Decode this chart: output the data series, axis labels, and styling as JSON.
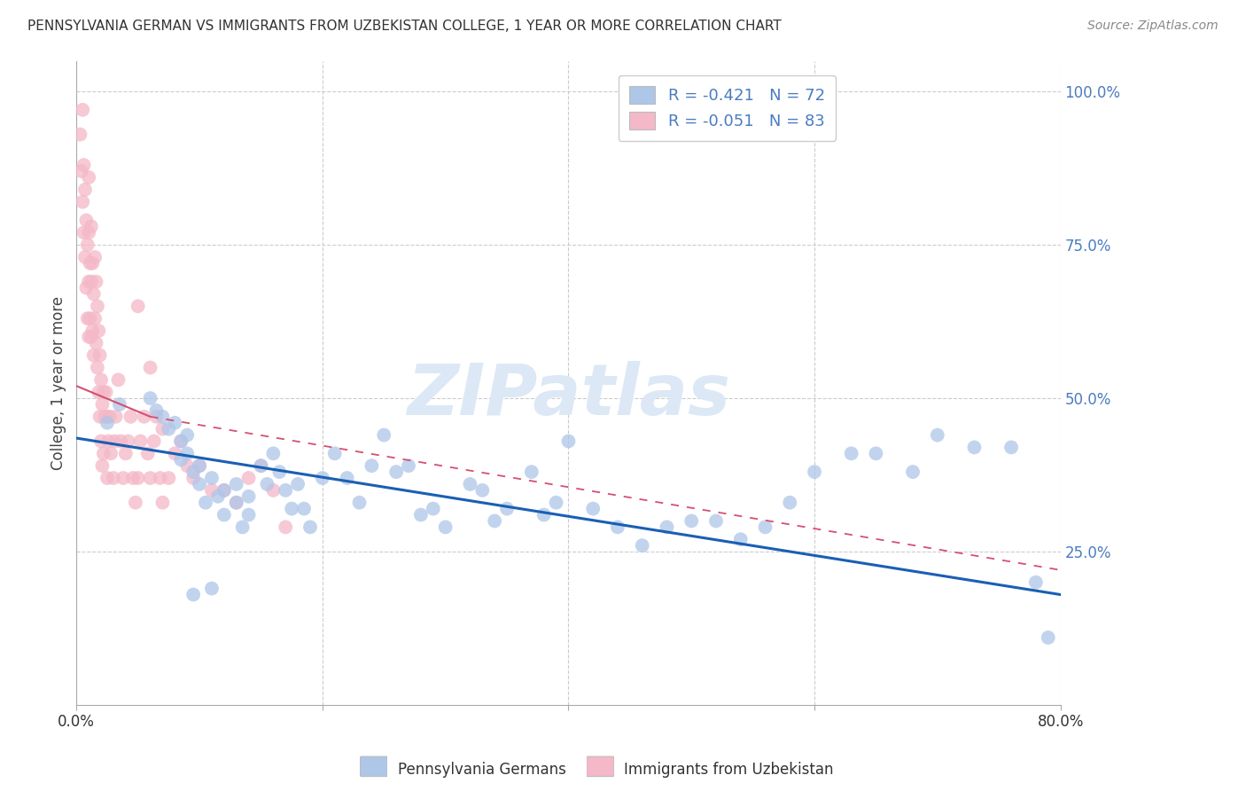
{
  "title": "PENNSYLVANIA GERMAN VS IMMIGRANTS FROM UZBEKISTAN COLLEGE, 1 YEAR OR MORE CORRELATION CHART",
  "source": "Source: ZipAtlas.com",
  "ylabel": "College, 1 year or more",
  "xlim": [
    0.0,
    0.8
  ],
  "ylim": [
    0.0,
    1.05
  ],
  "watermark": "ZIPatlas",
  "blue_color": "#aec6e8",
  "pink_color": "#f4b8c8",
  "blue_line_color": "#1a5fb4",
  "pink_line_solid_color": "#d45070",
  "pink_line_dash_color": "#e8a0b0",
  "grid_color": "#cccccc",
  "right_axis_color": "#4a7cc0",
  "watermark_color": "#dce8f5",
  "background_color": "#ffffff",
  "legend_R1_color": "#2060c0",
  "legend_R2_color": "#2060c0",
  "legend_N1_color": "#2060c0",
  "legend_N2_color": "#2060c0",
  "blue_scatter_x": [
    0.025,
    0.035,
    0.06,
    0.065,
    0.07,
    0.075,
    0.08,
    0.085,
    0.085,
    0.09,
    0.09,
    0.095,
    0.1,
    0.1,
    0.105,
    0.11,
    0.115,
    0.12,
    0.12,
    0.13,
    0.13,
    0.135,
    0.14,
    0.14,
    0.15,
    0.155,
    0.16,
    0.165,
    0.17,
    0.175,
    0.18,
    0.185,
    0.19,
    0.2,
    0.21,
    0.22,
    0.23,
    0.24,
    0.25,
    0.26,
    0.27,
    0.28,
    0.29,
    0.3,
    0.32,
    0.33,
    0.34,
    0.35,
    0.37,
    0.38,
    0.39,
    0.4,
    0.42,
    0.44,
    0.46,
    0.48,
    0.5,
    0.52,
    0.54,
    0.56,
    0.58,
    0.6,
    0.63,
    0.65,
    0.68,
    0.7,
    0.73,
    0.76,
    0.78,
    0.79,
    0.095,
    0.11
  ],
  "blue_scatter_y": [
    0.46,
    0.49,
    0.5,
    0.48,
    0.47,
    0.45,
    0.46,
    0.43,
    0.4,
    0.44,
    0.41,
    0.38,
    0.36,
    0.39,
    0.33,
    0.37,
    0.34,
    0.35,
    0.31,
    0.36,
    0.33,
    0.29,
    0.34,
    0.31,
    0.39,
    0.36,
    0.41,
    0.38,
    0.35,
    0.32,
    0.36,
    0.32,
    0.29,
    0.37,
    0.41,
    0.37,
    0.33,
    0.39,
    0.44,
    0.38,
    0.39,
    0.31,
    0.32,
    0.29,
    0.36,
    0.35,
    0.3,
    0.32,
    0.38,
    0.31,
    0.33,
    0.43,
    0.32,
    0.29,
    0.26,
    0.29,
    0.3,
    0.3,
    0.27,
    0.29,
    0.33,
    0.38,
    0.41,
    0.41,
    0.38,
    0.44,
    0.42,
    0.42,
    0.2,
    0.11,
    0.18,
    0.19
  ],
  "pink_scatter_x": [
    0.003,
    0.004,
    0.005,
    0.005,
    0.006,
    0.006,
    0.007,
    0.007,
    0.008,
    0.008,
    0.009,
    0.009,
    0.01,
    0.01,
    0.01,
    0.01,
    0.011,
    0.011,
    0.012,
    0.012,
    0.012,
    0.013,
    0.013,
    0.014,
    0.014,
    0.015,
    0.015,
    0.016,
    0.016,
    0.017,
    0.017,
    0.018,
    0.018,
    0.019,
    0.019,
    0.02,
    0.02,
    0.021,
    0.021,
    0.022,
    0.022,
    0.023,
    0.024,
    0.025,
    0.025,
    0.026,
    0.027,
    0.028,
    0.03,
    0.031,
    0.032,
    0.034,
    0.036,
    0.038,
    0.04,
    0.042,
    0.044,
    0.046,
    0.048,
    0.05,
    0.052,
    0.055,
    0.058,
    0.06,
    0.063,
    0.065,
    0.068,
    0.07,
    0.075,
    0.08,
    0.085,
    0.09,
    0.095,
    0.1,
    0.11,
    0.12,
    0.13,
    0.14,
    0.15,
    0.16,
    0.17,
    0.05,
    0.06,
    0.07
  ],
  "pink_scatter_y": [
    0.93,
    0.87,
    0.97,
    0.82,
    0.88,
    0.77,
    0.84,
    0.73,
    0.79,
    0.68,
    0.75,
    0.63,
    0.86,
    0.77,
    0.69,
    0.6,
    0.72,
    0.63,
    0.78,
    0.69,
    0.6,
    0.72,
    0.61,
    0.67,
    0.57,
    0.73,
    0.63,
    0.69,
    0.59,
    0.65,
    0.55,
    0.61,
    0.51,
    0.57,
    0.47,
    0.53,
    0.43,
    0.49,
    0.39,
    0.51,
    0.41,
    0.47,
    0.51,
    0.47,
    0.37,
    0.43,
    0.47,
    0.41,
    0.37,
    0.43,
    0.47,
    0.53,
    0.43,
    0.37,
    0.41,
    0.43,
    0.47,
    0.37,
    0.33,
    0.37,
    0.43,
    0.47,
    0.41,
    0.37,
    0.43,
    0.47,
    0.37,
    0.33,
    0.37,
    0.41,
    0.43,
    0.39,
    0.37,
    0.39,
    0.35,
    0.35,
    0.33,
    0.37,
    0.39,
    0.35,
    0.29,
    0.65,
    0.55,
    0.45
  ],
  "blue_line_x0": 0.0,
  "blue_line_x1": 0.8,
  "blue_line_y0": 0.435,
  "blue_line_y1": 0.18,
  "pink_line_solid_x0": 0.0,
  "pink_line_solid_x1": 0.06,
  "pink_line_y0": 0.52,
  "pink_line_y1_solid": 0.47,
  "pink_line_dash_x0": 0.06,
  "pink_line_dash_x1": 0.8,
  "pink_line_y1_dash": 0.22
}
